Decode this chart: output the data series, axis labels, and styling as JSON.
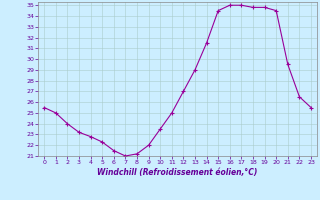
{
  "hours": [
    0,
    1,
    2,
    3,
    4,
    5,
    6,
    7,
    8,
    9,
    10,
    11,
    12,
    13,
    14,
    15,
    16,
    17,
    18,
    19,
    20,
    21,
    22,
    23
  ],
  "values": [
    25.5,
    25.0,
    24.0,
    23.2,
    22.8,
    22.3,
    21.5,
    21.0,
    21.2,
    22.0,
    23.5,
    25.0,
    27.0,
    29.0,
    31.5,
    34.5,
    35.0,
    35.0,
    34.8,
    34.8,
    34.5,
    29.5,
    26.5,
    25.5
  ],
  "xlabel": "Windchill (Refroidissement éolien,°C)",
  "ylim": [
    21,
    35
  ],
  "xlim_min": -0.5,
  "xlim_max": 23.5,
  "yticks": [
    21,
    22,
    23,
    24,
    25,
    26,
    27,
    28,
    29,
    30,
    31,
    32,
    33,
    34,
    35
  ],
  "xticks": [
    0,
    1,
    2,
    3,
    4,
    5,
    6,
    7,
    8,
    9,
    10,
    11,
    12,
    13,
    14,
    15,
    16,
    17,
    18,
    19,
    20,
    21,
    22,
    23
  ],
  "line_color": "#990099",
  "bg_color": "#cceeff",
  "grid_color": "#aacccc",
  "tick_color": "#660099",
  "label_color": "#660099",
  "spine_color": "#888888"
}
